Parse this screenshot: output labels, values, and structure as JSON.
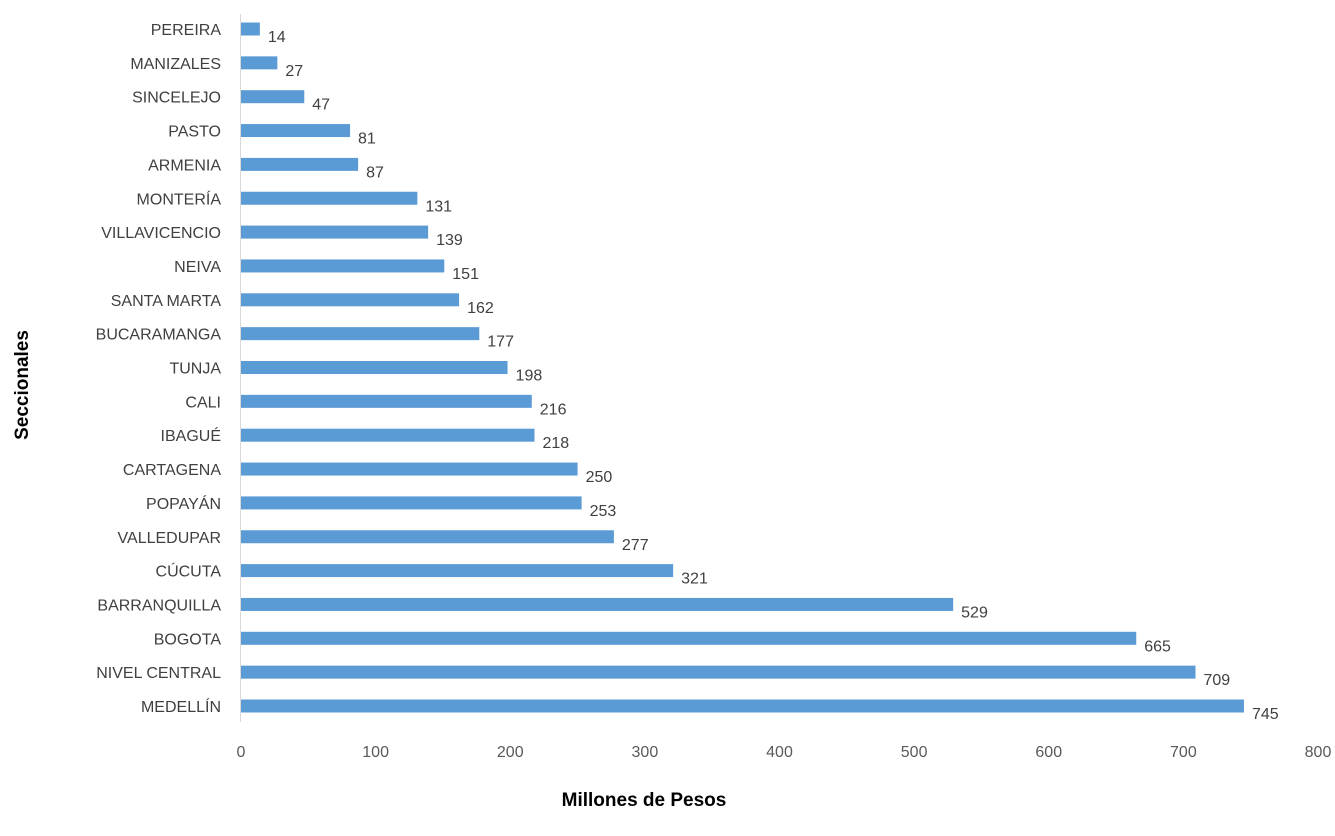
{
  "chart_data": {
    "type": "bar",
    "orientation": "horizontal",
    "title": "",
    "xlabel": "Millones de Pesos",
    "ylabel": "Seccionales",
    "categories": [
      "MEDELLÍN",
      "NIVEL CENTRAL",
      "BOGOTA",
      "BARRANQUILLA",
      "CÚCUTA",
      "VALLEDUPAR",
      "POPAYÁN",
      "CARTAGENA",
      "IBAGUÉ",
      "CALI",
      "TUNJA",
      "BUCARAMANGA",
      "SANTA MARTA",
      "NEIVA",
      "VILLAVICENCIO",
      "MONTERÍA",
      "ARMENIA",
      "PASTO",
      "SINCELEJO",
      "MANIZALES",
      "PEREIRA"
    ],
    "values": [
      745,
      709,
      665,
      529,
      321,
      277,
      253,
      250,
      218,
      216,
      198,
      177,
      162,
      151,
      139,
      131,
      87,
      81,
      47,
      27,
      14
    ],
    "xlim": [
      0,
      800
    ],
    "xticks": [
      0,
      100,
      200,
      300,
      400,
      500,
      600,
      700,
      800
    ],
    "grid": false,
    "data_labels": true,
    "bar_color": "#5B9BD5"
  }
}
